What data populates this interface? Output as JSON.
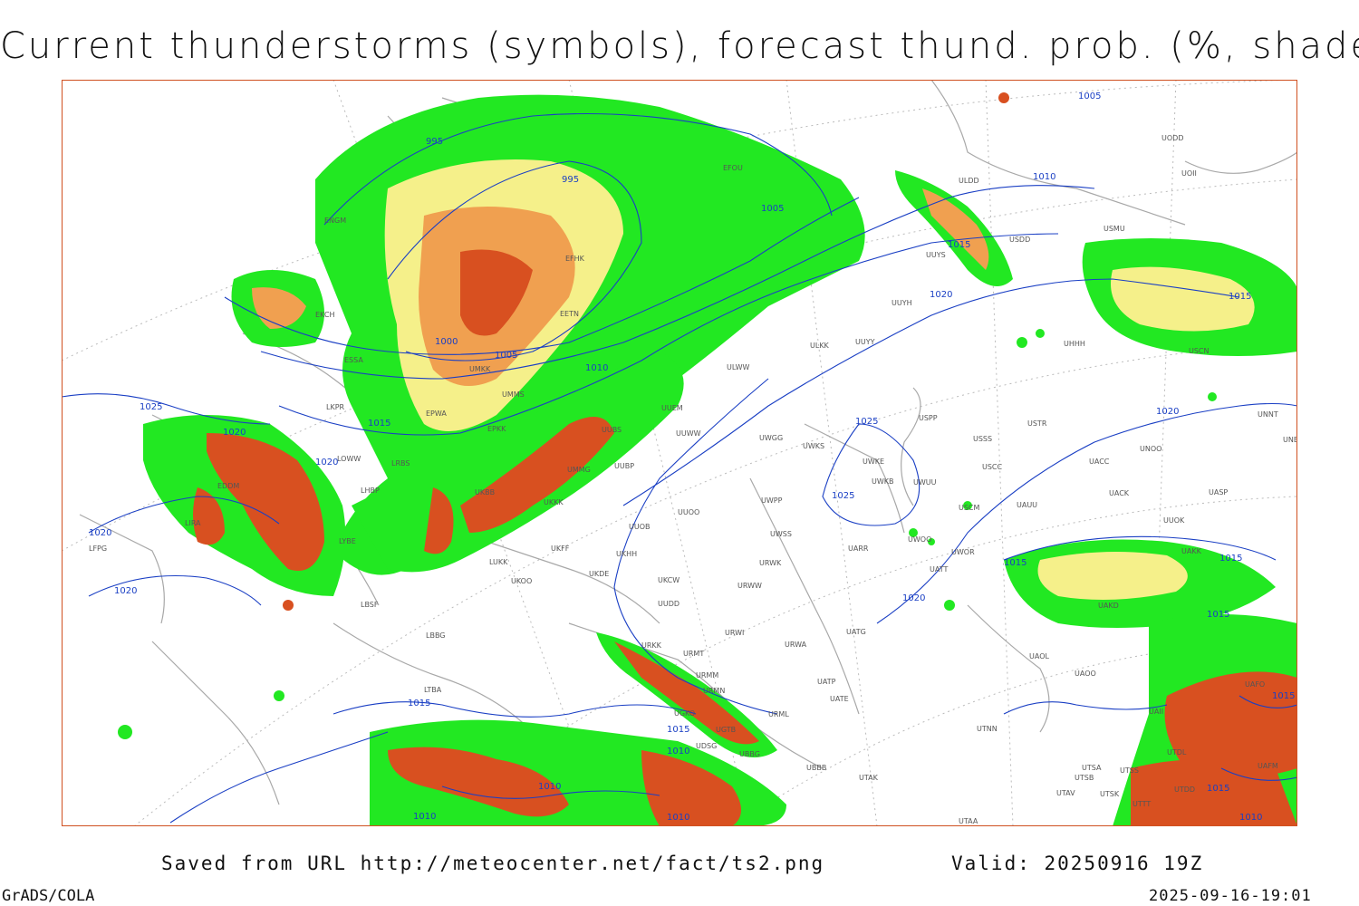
{
  "title": "Current thunderstorms (symbols), forecast thund. prob. (%, shaded)",
  "footer": {
    "saved_from": "Saved from URL http://meteocenter.net/fact/ts2.png",
    "valid": "Valid: 20250916 19Z",
    "software": "GrADS/COLA",
    "timestamp": "2025-09-16-19:01"
  },
  "colors": {
    "low_prob": "#22e822",
    "mid_prob": "#f5f08a",
    "mid_high_prob": "#f0a050",
    "high_prob": "#d85020",
    "very_high_prob": "#b83818",
    "isobar": "#1a3fc4",
    "coastline": "#a0a0a0"
  },
  "isobars": [
    {
      "label": "995"
    },
    {
      "label": "995"
    },
    {
      "label": "1000"
    },
    {
      "label": "1005"
    },
    {
      "label": "1005"
    },
    {
      "label": "1005"
    },
    {
      "label": "1010"
    },
    {
      "label": "1010"
    },
    {
      "label": "1015"
    },
    {
      "label": "1015"
    },
    {
      "label": "1015"
    },
    {
      "label": "1015"
    },
    {
      "label": "1015"
    },
    {
      "label": "1015"
    },
    {
      "label": "1015"
    },
    {
      "label": "1015"
    },
    {
      "label": "1015"
    },
    {
      "label": "1015"
    },
    {
      "label": "1020"
    },
    {
      "label": "1020"
    },
    {
      "label": "1020"
    },
    {
      "label": "1020"
    },
    {
      "label": "1020"
    },
    {
      "label": "1020"
    },
    {
      "label": "1020"
    },
    {
      "label": "1025"
    },
    {
      "label": "1025"
    },
    {
      "label": "1025"
    },
    {
      "label": "1010"
    },
    {
      "label": "1010"
    },
    {
      "label": "1010"
    },
    {
      "label": "1010"
    },
    {
      "label": "1010"
    }
  ],
  "stations": [
    "ULDD",
    "UODD",
    "UOII",
    "USMU",
    "USDD",
    "UUYS",
    "UUYH",
    "ULKK",
    "UUYY",
    "ULWW",
    "UUEM",
    "UUWW",
    "UUBS",
    "UMMG",
    "UUBP",
    "UKKK",
    "UUOB",
    "UUOO",
    "UWPP",
    "UWGG",
    "UWKS",
    "UWKE",
    "UWKB",
    "UWUU",
    "USPP",
    "USSS",
    "USTR",
    "USCC",
    "USCM",
    "UAUU",
    "UACC",
    "UACK",
    "UASP",
    "UNOO",
    "UNNT",
    "UNBB",
    "UATT",
    "UWOO",
    "UWOR",
    "UARR",
    "UWSS",
    "URWK",
    "URWW",
    "UUDD",
    "UKCW",
    "UKDE",
    "UKHH",
    "UKFF",
    "UKOO",
    "LUKK",
    "LBSF",
    "LBBG",
    "LTBA",
    "URKK",
    "URMT",
    "URMM",
    "URMN",
    "URWI",
    "URWA",
    "UATG",
    "UATP",
    "UATE",
    "URML",
    "UGKO",
    "UGTB",
    "UDSG",
    "UBBG",
    "UBBB",
    "UTAK",
    "UTNN",
    "UTSA",
    "UTSB",
    "UTSS",
    "UTAV",
    "UTSK",
    "UTAA",
    "UTDD",
    "UTDL",
    "UAOL",
    "UAOO",
    "UAKD",
    "UAII",
    "UHHH",
    "UAKK",
    "LKPR",
    "EPWA",
    "UMKK",
    "ESSA",
    "EFHK",
    "EETN",
    "UMMS",
    "EPKK",
    "LYBE",
    "LRBS",
    "UKBB",
    "LHBP",
    "LOWW",
    "EDDM",
    "LIRA",
    "LFPG",
    "EKCH",
    "ENGM",
    "EFOU",
    "UAFO",
    "UAFM",
    "UTTT",
    "USCN",
    "UUOK"
  ]
}
